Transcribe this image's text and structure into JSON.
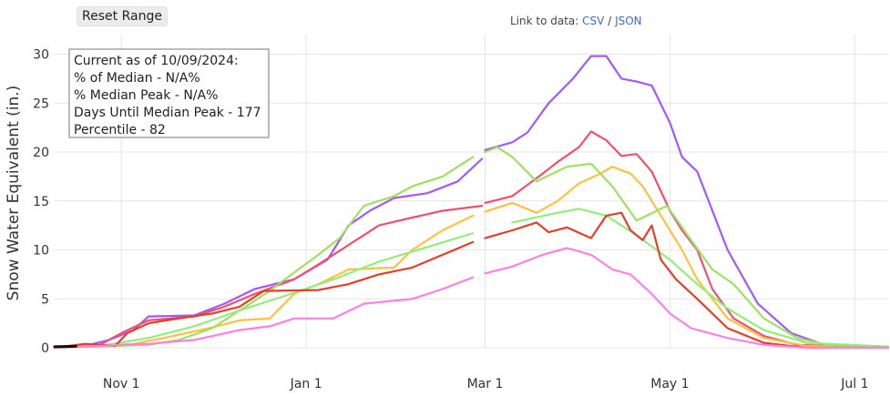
{
  "controls": {
    "reset_label": "Reset Range"
  },
  "links": {
    "prefix": "Link to data:",
    "csv": "CSV",
    "sep": "/",
    "json": "JSON"
  },
  "chart_data": {
    "type": "line",
    "ylabel": "Snow Water Equivalent (in.)",
    "ylim": [
      0,
      32
    ],
    "yticks": [
      0,
      5,
      10,
      15,
      20,
      25,
      30
    ],
    "xlim": [
      "2024-10-10",
      "2025-07-12"
    ],
    "xticks": [
      {
        "label": "Nov 1",
        "date": "2024-11-01"
      },
      {
        "label": "Jan 1",
        "date": "2025-01-01"
      },
      {
        "label": "Mar 1",
        "date": "2025-03-01"
      },
      {
        "label": "May 1",
        "date": "2025-05-01"
      },
      {
        "label": "Jul 1",
        "date": "2025-07-01"
      }
    ],
    "grid": true,
    "annotation": [
      "Current as of 10/09/2024:",
      "% of Median - N/A%",
      "% Median Peak - N/A%",
      "Days Until Median Peak - 177",
      "Percentile - 82"
    ],
    "series": [
      {
        "color": "#a259f7",
        "points": [
          [
            "2024-10-10",
            0
          ],
          [
            "2024-10-20",
            0.2
          ],
          [
            "2024-10-28",
            0.8
          ],
          [
            "2024-11-05",
            1.8
          ],
          [
            "2024-11-10",
            3.2
          ],
          [
            "2024-11-25",
            3.3
          ],
          [
            "2024-12-05",
            4.5
          ],
          [
            "2024-12-15",
            6
          ],
          [
            "2024-12-28",
            7
          ],
          [
            "2025-01-08",
            9
          ],
          [
            "2025-01-12",
            11
          ],
          [
            "2025-01-15",
            12.5
          ],
          [
            "2025-01-22",
            14
          ],
          [
            "2025-01-30",
            15.3
          ],
          [
            "2025-02-10",
            15.8
          ],
          [
            "2025-02-20",
            17
          ],
          [
            "2025-02-28",
            19.3
          ],
          [
            "2025-03-01",
            20.2
          ],
          [
            "2025-03-10",
            21
          ],
          [
            "2025-03-15",
            22
          ],
          [
            "2025-03-22",
            25
          ],
          [
            "2025-03-30",
            27.5
          ],
          [
            "2025-04-05",
            29.8
          ],
          [
            "2025-04-10",
            29.8
          ],
          [
            "2025-04-15",
            27.5
          ],
          [
            "2025-04-20",
            27.2
          ],
          [
            "2025-04-25",
            26.8
          ],
          [
            "2025-05-01",
            23
          ],
          [
            "2025-05-05",
            19.5
          ],
          [
            "2025-05-10",
            18
          ],
          [
            "2025-05-20",
            10
          ],
          [
            "2025-05-30",
            4.5
          ],
          [
            "2025-06-10",
            1.5
          ],
          [
            "2025-06-20",
            0.4
          ],
          [
            "2025-07-12",
            0.1
          ]
        ]
      },
      {
        "color": "#f0506e",
        "points": [
          [
            "2024-10-10",
            0
          ],
          [
            "2024-10-25",
            0.3
          ],
          [
            "2024-11-01",
            1.5
          ],
          [
            "2024-11-10",
            2.8
          ],
          [
            "2024-11-25",
            3.2
          ],
          [
            "2024-12-05",
            4.2
          ],
          [
            "2024-12-15",
            5.5
          ],
          [
            "2024-12-28",
            7
          ],
          [
            "2025-01-05",
            8.5
          ],
          [
            "2025-01-15",
            10.5
          ],
          [
            "2025-01-25",
            12.5
          ],
          [
            "2025-02-05",
            13.3
          ],
          [
            "2025-02-15",
            14
          ],
          [
            "2025-02-28",
            14.5
          ],
          [
            "2025-03-01",
            14.8
          ],
          [
            "2025-03-10",
            15.5
          ],
          [
            "2025-03-20",
            17.8
          ],
          [
            "2025-03-25",
            19
          ],
          [
            "2025-04-01",
            20.5
          ],
          [
            "2025-04-05",
            22.1
          ],
          [
            "2025-04-10",
            21.2
          ],
          [
            "2025-04-15",
            19.6
          ],
          [
            "2025-04-20",
            19.8
          ],
          [
            "2025-04-25",
            18
          ],
          [
            "2025-05-01",
            14
          ],
          [
            "2025-05-05",
            12
          ],
          [
            "2025-05-10",
            10
          ],
          [
            "2025-05-15",
            6
          ],
          [
            "2025-05-22",
            3
          ],
          [
            "2025-06-01",
            1.2
          ],
          [
            "2025-06-12",
            0.3
          ],
          [
            "2025-07-12",
            0
          ]
        ]
      },
      {
        "color": "#ffc040",
        "points": [
          [
            "2024-10-10",
            0
          ],
          [
            "2024-11-05",
            0.4
          ],
          [
            "2024-11-15",
            1
          ],
          [
            "2024-11-30",
            2
          ],
          [
            "2024-12-10",
            2.8
          ],
          [
            "2024-12-20",
            3
          ],
          [
            "2024-12-28",
            5.5
          ],
          [
            "2025-01-05",
            6.5
          ],
          [
            "2025-01-15",
            8
          ],
          [
            "2025-01-30",
            8.2
          ],
          [
            "2025-02-05",
            10
          ],
          [
            "2025-02-15",
            12
          ],
          [
            "2025-02-25",
            13.5
          ],
          [
            "2025-03-01",
            13.9
          ],
          [
            "2025-03-10",
            14.8
          ],
          [
            "2025-03-18",
            13.8
          ],
          [
            "2025-03-25",
            15
          ],
          [
            "2025-04-01",
            16.8
          ],
          [
            "2025-04-08",
            17.8
          ],
          [
            "2025-04-12",
            18.5
          ],
          [
            "2025-04-18",
            17.8
          ],
          [
            "2025-04-22",
            16.5
          ],
          [
            "2025-04-28",
            13.5
          ],
          [
            "2025-05-05",
            10
          ],
          [
            "2025-05-10",
            7
          ],
          [
            "2025-05-20",
            3
          ],
          [
            "2025-06-01",
            1
          ],
          [
            "2025-06-15",
            0.2
          ],
          [
            "2025-07-12",
            0
          ]
        ]
      },
      {
        "color": "#9ee060",
        "points": [
          [
            "2024-10-10",
            0
          ],
          [
            "2024-11-10",
            0.3
          ],
          [
            "2024-11-20",
            0.8
          ],
          [
            "2024-12-01",
            2
          ],
          [
            "2024-12-10",
            3.8
          ],
          [
            "2024-12-20",
            5.8
          ],
          [
            "2024-12-25",
            7
          ],
          [
            "2025-01-05",
            9.5
          ],
          [
            "2025-01-12",
            11.2
          ],
          [
            "2025-01-20",
            14.5
          ],
          [
            "2025-01-30",
            15.5
          ],
          [
            "2025-02-05",
            16.5
          ],
          [
            "2025-02-15",
            17.5
          ],
          [
            "2025-02-25",
            19.5
          ],
          [
            "2025-03-01",
            20
          ],
          [
            "2025-03-05",
            20.5
          ],
          [
            "2025-03-10",
            19.5
          ],
          [
            "2025-03-18",
            17
          ],
          [
            "2025-03-28",
            18.5
          ],
          [
            "2025-04-05",
            18.8
          ],
          [
            "2025-04-12",
            16.5
          ],
          [
            "2025-04-20",
            13
          ],
          [
            "2025-04-30",
            14.5
          ],
          [
            "2025-05-08",
            11
          ],
          [
            "2025-05-15",
            8
          ],
          [
            "2025-05-22",
            6.5
          ],
          [
            "2025-06-01",
            3
          ],
          [
            "2025-06-12",
            1
          ],
          [
            "2025-06-25",
            0.1
          ],
          [
            "2025-07-12",
            0
          ]
        ]
      },
      {
        "color": "#90ee7a",
        "points": [
          [
            "2024-10-10",
            0
          ],
          [
            "2024-10-25",
            0.2
          ],
          [
            "2024-11-10",
            1
          ],
          [
            "2024-11-25",
            2.2
          ],
          [
            "2024-12-10",
            3.8
          ],
          [
            "2024-12-25",
            5.3
          ],
          [
            "2025-01-10",
            7
          ],
          [
            "2025-01-25",
            8.8
          ],
          [
            "2025-02-10",
            10.3
          ],
          [
            "2025-02-25",
            11.7
          ],
          [
            "2025-03-10",
            12.8
          ],
          [
            "2025-03-25",
            13.8
          ],
          [
            "2025-04-01",
            14.2
          ],
          [
            "2025-04-10",
            13.5
          ],
          [
            "2025-04-20",
            11.5
          ],
          [
            "2025-05-01",
            9
          ],
          [
            "2025-05-10",
            6.5
          ],
          [
            "2025-05-20",
            4
          ],
          [
            "2025-06-01",
            1.8
          ],
          [
            "2025-06-15",
            0.5
          ],
          [
            "2025-07-12",
            0.1
          ]
        ]
      },
      {
        "color": "#e0402a",
        "points": [
          [
            "2024-10-10",
            0
          ],
          [
            "2024-10-20",
            0.4
          ],
          [
            "2024-10-30",
            0.2
          ],
          [
            "2024-11-03",
            1.5
          ],
          [
            "2024-11-10",
            2.5
          ],
          [
            "2024-11-20",
            3
          ],
          [
            "2024-12-01",
            3.5
          ],
          [
            "2024-12-10",
            4.2
          ],
          [
            "2024-12-18",
            5.8
          ],
          [
            "2025-01-05",
            5.9
          ],
          [
            "2025-01-15",
            6.5
          ],
          [
            "2025-01-25",
            7.5
          ],
          [
            "2025-02-05",
            8.2
          ],
          [
            "2025-02-15",
            9.5
          ],
          [
            "2025-02-25",
            10.8
          ],
          [
            "2025-03-01",
            11.2
          ],
          [
            "2025-03-10",
            12
          ],
          [
            "2025-03-18",
            12.8
          ],
          [
            "2025-03-22",
            11.8
          ],
          [
            "2025-03-28",
            12.3
          ],
          [
            "2025-04-05",
            11.2
          ],
          [
            "2025-04-10",
            13.5
          ],
          [
            "2025-04-15",
            13.8
          ],
          [
            "2025-04-18",
            12
          ],
          [
            "2025-04-22",
            11
          ],
          [
            "2025-04-25",
            12.5
          ],
          [
            "2025-04-28",
            9
          ],
          [
            "2025-05-03",
            7
          ],
          [
            "2025-05-10",
            5
          ],
          [
            "2025-05-20",
            2
          ],
          [
            "2025-06-01",
            0.5
          ],
          [
            "2025-06-15",
            0
          ],
          [
            "2025-07-12",
            0
          ]
        ]
      },
      {
        "color": "#ff7fe5",
        "points": [
          [
            "2024-10-10",
            0
          ],
          [
            "2024-11-10",
            0.4
          ],
          [
            "2024-11-25",
            0.8
          ],
          [
            "2024-12-10",
            1.8
          ],
          [
            "2024-12-20",
            2.2
          ],
          [
            "2024-12-28",
            3
          ],
          [
            "2025-01-10",
            3
          ],
          [
            "2025-01-20",
            4.5
          ],
          [
            "2025-02-05",
            5
          ],
          [
            "2025-02-15",
            6
          ],
          [
            "2025-02-25",
            7.2
          ],
          [
            "2025-03-01",
            7.6
          ],
          [
            "2025-03-10",
            8.3
          ],
          [
            "2025-03-20",
            9.5
          ],
          [
            "2025-03-28",
            10.2
          ],
          [
            "2025-04-05",
            9.5
          ],
          [
            "2025-04-12",
            8
          ],
          [
            "2025-04-18",
            7.5
          ],
          [
            "2025-04-25",
            5.5
          ],
          [
            "2025-05-01",
            3.5
          ],
          [
            "2025-05-08",
            2
          ],
          [
            "2025-05-20",
            1
          ],
          [
            "2025-06-01",
            0.3
          ],
          [
            "2025-06-15",
            0
          ],
          [
            "2025-07-12",
            0
          ]
        ]
      },
      {
        "color": "#111111",
        "width": 3,
        "points": [
          [
            "2024-10-10",
            0.1
          ],
          [
            "2024-10-17",
            0.15
          ]
        ]
      }
    ]
  }
}
